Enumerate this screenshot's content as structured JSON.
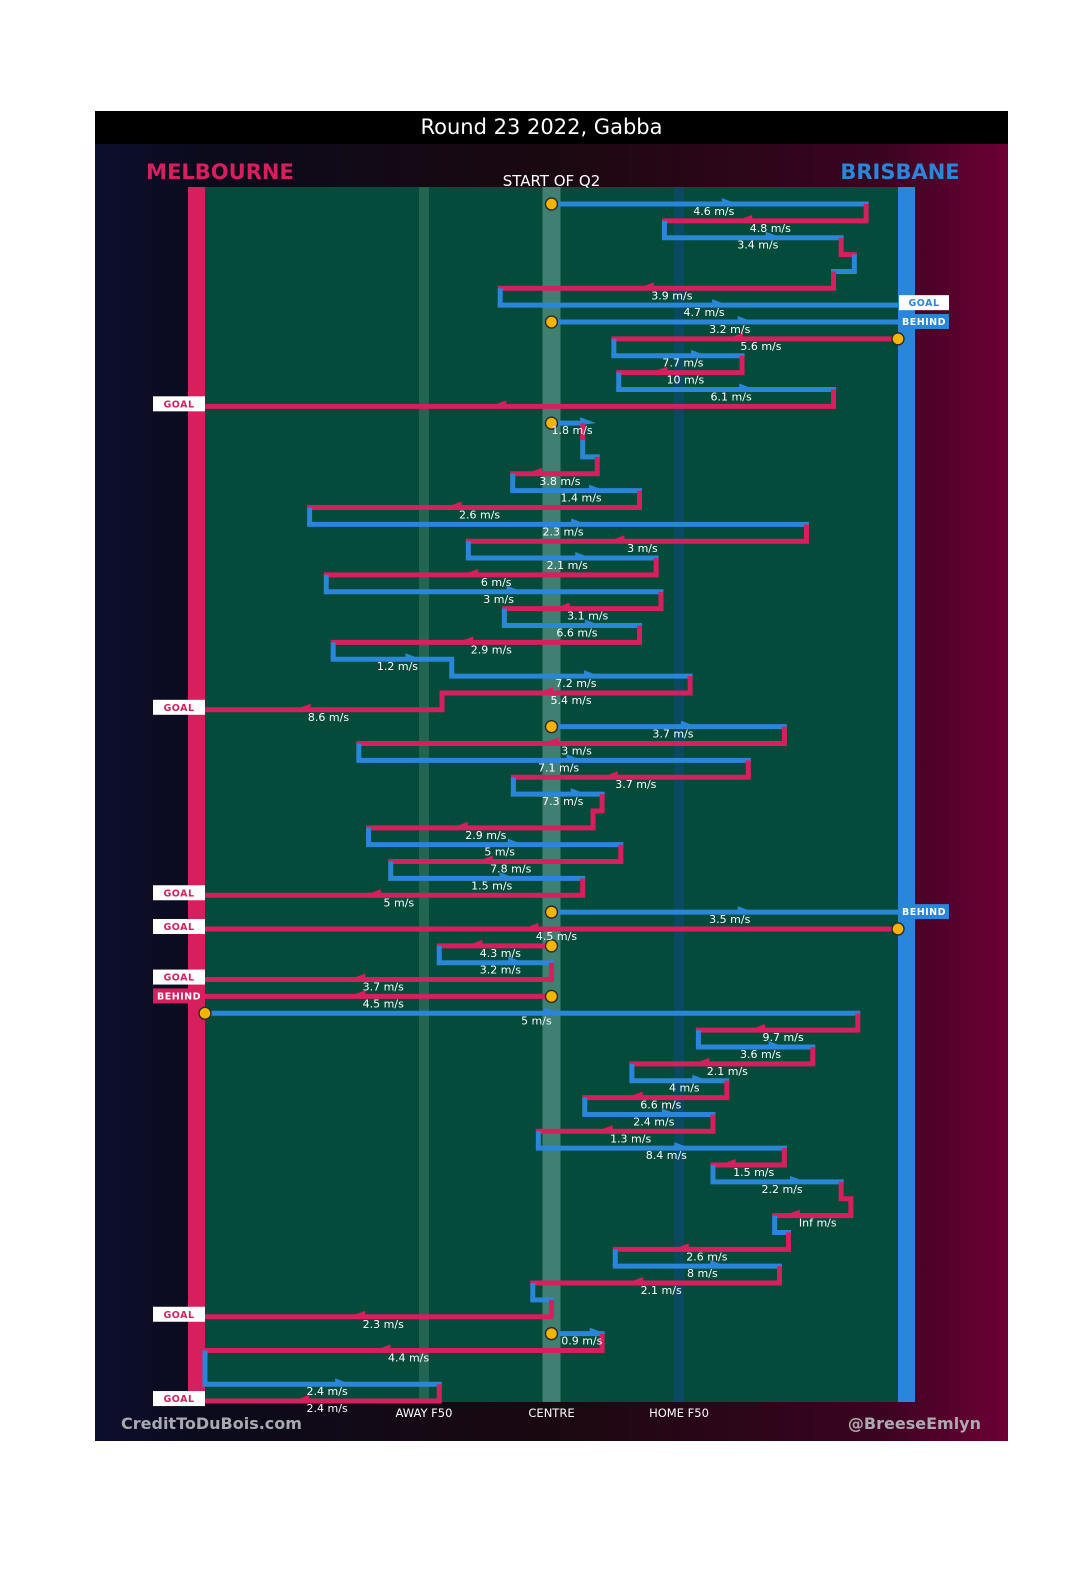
{
  "title": "Round 23 2022, Gabba",
  "home_team": {
    "name": "BRISBANE",
    "color": "#2a86d8"
  },
  "away_team": {
    "name": "MELBOURNE",
    "color": "#d81f5e"
  },
  "start_label": "START OF Q2",
  "credit_left": "CreditToDuBois.com",
  "credit_right": "@BreeseEmlyn",
  "colors": {
    "field": "#044b3b",
    "melbourne": "#d81f5e",
    "brisbane": "#2a86d8",
    "centre_band": "#4a8a7c",
    "ball": "#f5b400"
  },
  "chart_data": {
    "type": "line",
    "title": "Round 23 2022, Gabba",
    "subtitle": "START OF Q2",
    "x_ticks": [
      {
        "label": "AWAY F50",
        "x": 0.316
      },
      {
        "label": "CENTRE",
        "x": 0.5
      },
      {
        "label": "HOME F50",
        "x": 0.684
      }
    ],
    "series": [
      {
        "name": "MELBOURNE",
        "color": "#d81f5e"
      },
      {
        "name": "BRISBANE",
        "color": "#2a86d8"
      }
    ],
    "xlim": [
      0,
      1
    ],
    "possessions": [
      {
        "team": "BRISBANE",
        "x_start": 0.5,
        "x_end": 0.954,
        "speed": "4.6 m/s"
      },
      {
        "team": "MELBOURNE",
        "x_start": 0.954,
        "x_end": 0.663,
        "speed": "4.8 m/s"
      },
      {
        "team": "BRISBANE",
        "x_start": 0.663,
        "x_end": 0.918,
        "speed": "3.4 m/s"
      },
      {
        "team": "MELBOURNE",
        "x_start": 0.918,
        "x_end": 0.937,
        "speed": ""
      },
      {
        "team": "BRISBANE",
        "x_start": 0.937,
        "x_end": 0.907,
        "speed": ""
      },
      {
        "team": "MELBOURNE",
        "x_start": 0.907,
        "x_end": 0.426,
        "speed": "3.9 m/s"
      },
      {
        "team": "BRISBANE",
        "x_start": 0.426,
        "x_end": 1.0,
        "speed": "4.7 m/s",
        "result": "GOAL"
      },
      {
        "team": "BRISBANE",
        "x_start": 0.5,
        "x_end": 1.0,
        "speed": "3.2 m/s",
        "result": "BEHIND"
      },
      {
        "team": "MELBOURNE",
        "x_start": 1.0,
        "x_end": 0.59,
        "speed": "5.6 m/s"
      },
      {
        "team": "BRISBANE",
        "x_start": 0.59,
        "x_end": 0.775,
        "speed": "7.7 m/s"
      },
      {
        "team": "MELBOURNE",
        "x_start": 0.775,
        "x_end": 0.597,
        "speed": "10 m/s"
      },
      {
        "team": "BRISBANE",
        "x_start": 0.597,
        "x_end": 0.907,
        "speed": "6.1 m/s"
      },
      {
        "team": "MELBOURNE",
        "x_start": 0.907,
        "x_end": 0.0,
        "speed": "",
        "result": "GOAL"
      },
      {
        "team": "BRISBANE",
        "x_start": 0.5,
        "x_end": 0.545,
        "speed": "1.8 m/s"
      },
      {
        "team": "MELBOURNE",
        "x_start": 0.545,
        "x_end": 0.545,
        "speed": ""
      },
      {
        "team": "BRISBANE",
        "x_start": 0.545,
        "x_end": 0.566,
        "speed": ""
      },
      {
        "team": "MELBOURNE",
        "x_start": 0.566,
        "x_end": 0.444,
        "speed": "3.8 m/s"
      },
      {
        "team": "BRISBANE",
        "x_start": 0.444,
        "x_end": 0.627,
        "speed": "1.4 m/s"
      },
      {
        "team": "MELBOURNE",
        "x_start": 0.627,
        "x_end": 0.151,
        "speed": "2.6 m/s"
      },
      {
        "team": "BRISBANE",
        "x_start": 0.151,
        "x_end": 0.868,
        "speed": "2.3 m/s"
      },
      {
        "team": "MELBOURNE",
        "x_start": 0.868,
        "x_end": 0.38,
        "speed": "3 m/s"
      },
      {
        "team": "BRISBANE",
        "x_start": 0.38,
        "x_end": 0.651,
        "speed": "2.1 m/s"
      },
      {
        "team": "MELBOURNE",
        "x_start": 0.651,
        "x_end": 0.175,
        "speed": "6 m/s"
      },
      {
        "team": "BRISBANE",
        "x_start": 0.175,
        "x_end": 0.658,
        "speed": "3 m/s"
      },
      {
        "team": "MELBOURNE",
        "x_start": 0.658,
        "x_end": 0.432,
        "speed": "3.1 m/s"
      },
      {
        "team": "BRISBANE",
        "x_start": 0.432,
        "x_end": 0.627,
        "speed": "6.6 m/s"
      },
      {
        "team": "MELBOURNE",
        "x_start": 0.627,
        "x_end": 0.185,
        "speed": "2.9 m/s"
      },
      {
        "team": "BRISBANE",
        "x_start": 0.185,
        "x_end": 0.356,
        "speed": "1.2 m/s"
      },
      {
        "team": "BRISBANE",
        "x_start": 0.356,
        "x_end": 0.7,
        "speed": "7.2 m/s"
      },
      {
        "team": "MELBOURNE",
        "x_start": 0.7,
        "x_end": 0.342,
        "speed": "5.4 m/s"
      },
      {
        "team": "MELBOURNE",
        "x_start": 0.342,
        "x_end": 0.0,
        "speed": "8.6 m/s",
        "result": "GOAL"
      },
      {
        "team": "BRISBANE",
        "x_start": 0.5,
        "x_end": 0.836,
        "speed": "3.7 m/s"
      },
      {
        "team": "MELBOURNE",
        "x_start": 0.836,
        "x_end": 0.222,
        "speed": "3 m/s"
      },
      {
        "team": "BRISBANE",
        "x_start": 0.222,
        "x_end": 0.784,
        "speed": "7.1 m/s"
      },
      {
        "team": "MELBOURNE",
        "x_start": 0.784,
        "x_end": 0.445,
        "speed": "3.7 m/s"
      },
      {
        "team": "BRISBANE",
        "x_start": 0.445,
        "x_end": 0.573,
        "speed": "7.3 m/s"
      },
      {
        "team": "MELBOURNE",
        "x_start": 0.573,
        "x_end": 0.56,
        "speed": ""
      },
      {
        "team": "MELBOURNE",
        "x_start": 0.56,
        "x_end": 0.236,
        "speed": "2.9 m/s"
      },
      {
        "team": "BRISBANE",
        "x_start": 0.236,
        "x_end": 0.6,
        "speed": "5 m/s"
      },
      {
        "team": "MELBOURNE",
        "x_start": 0.6,
        "x_end": 0.268,
        "speed": "7.8 m/s"
      },
      {
        "team": "BRISBANE",
        "x_start": 0.268,
        "x_end": 0.545,
        "speed": "1.5 m/s"
      },
      {
        "team": "MELBOURNE",
        "x_start": 0.545,
        "x_end": 0.0,
        "speed": "5 m/s",
        "result": "GOAL"
      },
      {
        "team": "BRISBANE",
        "x_start": 0.5,
        "x_end": 1.0,
        "speed": "3.5 m/s",
        "result": "BEHIND"
      },
      {
        "team": "MELBOURNE",
        "x_start": 1.0,
        "x_end": 0.0,
        "speed": "4.5 m/s",
        "result": "GOAL"
      },
      {
        "team": "MELBOURNE",
        "x_start": 0.5,
        "x_end": 0.338,
        "speed": "4.3 m/s"
      },
      {
        "team": "BRISBANE",
        "x_start": 0.338,
        "x_end": 0.5,
        "speed": "3.2 m/s"
      },
      {
        "team": "MELBOURNE",
        "x_start": 0.5,
        "x_end": 0.0,
        "speed": "3.7 m/s",
        "result": "GOAL"
      },
      {
        "team": "MELBOURNE",
        "x_start": 0.5,
        "x_end": 0.0,
        "speed": "4.5 m/s",
        "result": "BEHIND"
      },
      {
        "team": "BRISBANE",
        "x_start": 0.0,
        "x_end": 0.942,
        "speed": "5 m/s"
      },
      {
        "team": "MELBOURNE",
        "x_start": 0.942,
        "x_end": 0.712,
        "speed": "9.7 m/s"
      },
      {
        "team": "BRISBANE",
        "x_start": 0.712,
        "x_end": 0.877,
        "speed": "3.6 m/s"
      },
      {
        "team": "MELBOURNE",
        "x_start": 0.877,
        "x_end": 0.616,
        "speed": "2.1 m/s"
      },
      {
        "team": "BRISBANE",
        "x_start": 0.616,
        "x_end": 0.753,
        "speed": "4 m/s"
      },
      {
        "team": "MELBOURNE",
        "x_start": 0.753,
        "x_end": 0.548,
        "speed": "6.6 m/s"
      },
      {
        "team": "BRISBANE",
        "x_start": 0.548,
        "x_end": 0.733,
        "speed": "2.4 m/s"
      },
      {
        "team": "MELBOURNE",
        "x_start": 0.733,
        "x_end": 0.481,
        "speed": "1.3 m/s"
      },
      {
        "team": "BRISBANE",
        "x_start": 0.481,
        "x_end": 0.836,
        "speed": "8.4 m/s"
      },
      {
        "team": "MELBOURNE",
        "x_start": 0.836,
        "x_end": 0.733,
        "speed": "1.5 m/s"
      },
      {
        "team": "BRISBANE",
        "x_start": 0.733,
        "x_end": 0.918,
        "speed": "2.2 m/s"
      },
      {
        "team": "MELBOURNE",
        "x_start": 0.918,
        "x_end": 0.932,
        "speed": ""
      },
      {
        "team": "MELBOURNE",
        "x_start": 0.932,
        "x_end": 0.822,
        "speed": "Inf m/s"
      },
      {
        "team": "BRISBANE",
        "x_start": 0.822,
        "x_end": 0.842,
        "speed": ""
      },
      {
        "team": "MELBOURNE",
        "x_start": 0.842,
        "x_end": 0.592,
        "speed": "2.6 m/s"
      },
      {
        "team": "BRISBANE",
        "x_start": 0.592,
        "x_end": 0.829,
        "speed": "8 m/s"
      },
      {
        "team": "MELBOURNE",
        "x_start": 0.829,
        "x_end": 0.473,
        "speed": "2.1 m/s"
      },
      {
        "team": "BRISBANE",
        "x_start": 0.473,
        "x_end": 0.5,
        "speed": ""
      },
      {
        "team": "MELBOURNE",
        "x_start": 0.5,
        "x_end": 0.0,
        "speed": "2.3 m/s",
        "result": "GOAL"
      },
      {
        "team": "BRISBANE",
        "x_start": 0.5,
        "x_end": 0.573,
        "speed": "0.9 m/s"
      },
      {
        "team": "MELBOURNE",
        "x_start": 0.573,
        "x_end": 0.0,
        "speed": "4.4 m/s"
      },
      {
        "team": "BRISBANE",
        "x_start": 0.0,
        "x_end": 0.0,
        "speed": ""
      },
      {
        "team": "BRISBANE",
        "x_start": 0.0,
        "x_end": 0.338,
        "speed": "2.4 m/s"
      },
      {
        "team": "MELBOURNE",
        "x_start": 0.338,
        "x_end": 0.0,
        "speed": "2.4 m/s",
        "result": "GOAL"
      }
    ]
  }
}
